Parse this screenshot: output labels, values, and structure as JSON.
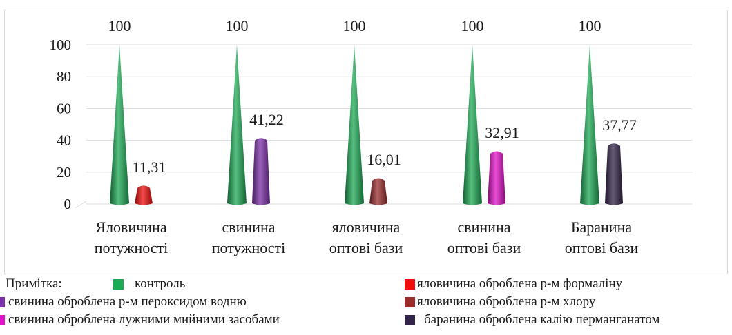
{
  "chart_data": {
    "type": "bar",
    "shape": "cone",
    "ylim": [
      0,
      100
    ],
    "yticks": [
      "0",
      "20",
      "40",
      "60",
      "80",
      "100"
    ],
    "grid": true,
    "categories": [
      [
        "Яловичина",
        "потужності"
      ],
      [
        "свинина",
        "потужності"
      ],
      [
        "яловичина",
        "оптові бази"
      ],
      [
        "свинина",
        "оптові бази"
      ],
      [
        "Баранина",
        "оптові бази"
      ]
    ],
    "control": {
      "name": "контроль",
      "color": "#1daa54",
      "values": [
        100,
        100,
        100,
        100,
        100
      ],
      "labels": [
        "100",
        "100",
        "100",
        "100",
        "100"
      ]
    },
    "treated": {
      "values": [
        11.31,
        41.22,
        16.01,
        32.91,
        37.77
      ],
      "labels": [
        "11,31",
        "41,22",
        "16,01",
        "32,91",
        "37,77"
      ],
      "colors": [
        "#f20d0d",
        "#7b2fa8",
        "#9b2d2d",
        "#e312c9",
        "#33244a"
      ]
    }
  },
  "legend": {
    "note": "Примітка:",
    "items": [
      {
        "label": "контроль",
        "color": "#1daa54"
      },
      {
        "label": "яловичина оброблена р-м формаліну",
        "color": "#f20d0d"
      },
      {
        "label": "свинина оброблена р-м пероксидом водню",
        "color": "#7b2fa8"
      },
      {
        "label": "яловичина оброблена р-м хлору",
        "color": "#9b2d2d"
      },
      {
        "label": "свинина оброблена лужними мийними засобами",
        "color": "#e312c9"
      },
      {
        "label": "баранина оброблена калію перманганатом",
        "color": "#33244a"
      }
    ]
  }
}
